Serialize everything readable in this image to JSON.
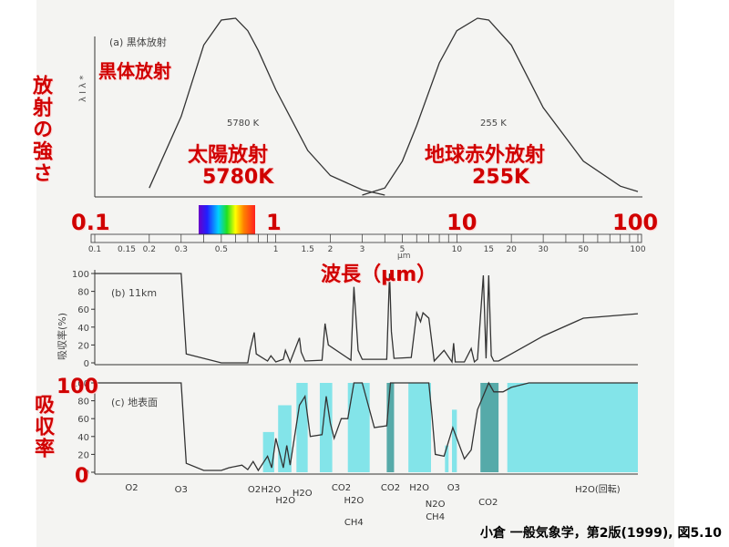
{
  "overlay": {
    "blackbody_title": "黒体放射",
    "y_title_top": "放射の強さ",
    "sun_label": "太陽放射",
    "sun_temp": "5780K",
    "earth_label": "地球赤外放射",
    "earth_temp": "255K",
    "decade_labels": [
      "0.1",
      "1",
      "10",
      "100"
    ],
    "wavelength_title": "波長（µm）",
    "y_title_bottom": "吸収率",
    "pct_100": "100",
    "pct_0": "0",
    "credit": "小倉 一般気象学，第2版(1999), 図5.10"
  },
  "chart_data": [
    {
      "type": "line",
      "panel_label": "(a) 黒体放射",
      "y_axis_label": "λ I λ *",
      "xscale": "log",
      "xlim": [
        0.1,
        100
      ],
      "series": [
        {
          "name": "5780 K",
          "x": [
            0.2,
            0.3,
            0.4,
            0.5,
            0.6,
            0.7,
            0.8,
            1.0,
            1.5,
            2,
            3,
            4
          ],
          "y": [
            0.05,
            0.45,
            0.85,
            0.99,
            1.0,
            0.93,
            0.82,
            0.6,
            0.26,
            0.12,
            0.04,
            0.01
          ]
        },
        {
          "name": "255 K",
          "x": [
            3,
            4,
            5,
            6,
            8,
            10,
            13,
            15,
            20,
            30,
            50,
            80,
            100
          ],
          "y": [
            0.01,
            0.05,
            0.2,
            0.4,
            0.75,
            0.93,
            1.0,
            0.99,
            0.85,
            0.5,
            0.2,
            0.06,
            0.03
          ]
        }
      ],
      "annotations": [
        "5780 K",
        "255 K"
      ]
    },
    {
      "type": "axis",
      "xscale": "log",
      "tick_labels": [
        "0.1",
        "0.15",
        "0.2",
        "0.3",
        "0.5",
        "1",
        "1.5",
        "2",
        "3",
        "5",
        "10",
        "15",
        "20",
        "30",
        "50",
        "100"
      ],
      "unit": "µm"
    },
    {
      "type": "line",
      "panel_label": "(b) 11km",
      "ylabel": "吸収率(%)",
      "xscale": "log",
      "ylim": [
        0,
        100
      ],
      "yticks": [
        0,
        20,
        40,
        60,
        80,
        100
      ],
      "x": [
        0.1,
        0.26,
        0.3,
        0.32,
        0.5,
        0.7,
        0.72,
        0.76,
        0.78,
        0.9,
        0.94,
        1.0,
        1.1,
        1.13,
        1.2,
        1.35,
        1.38,
        1.45,
        1.8,
        1.87,
        1.95,
        2.6,
        2.7,
        2.85,
        3.0,
        4.1,
        4.25,
        4.35,
        4.5,
        5.6,
        6.0,
        6.3,
        6.5,
        7.0,
        7.5,
        8.5,
        9.4,
        9.6,
        9.8,
        11,
        12,
        12.5,
        13,
        14,
        14.5,
        15,
        15.5,
        16,
        17,
        20,
        30,
        50,
        100
      ],
      "y": [
        100,
        100,
        100,
        10,
        0,
        0,
        14,
        34,
        10,
        2,
        8,
        1,
        4,
        14,
        1,
        28,
        12,
        2,
        3,
        44,
        20,
        3,
        85,
        14,
        4,
        4,
        100,
        35,
        5,
        6,
        56,
        46,
        56,
        50,
        2,
        14,
        1,
        22,
        1,
        1,
        16,
        1,
        4,
        98,
        5,
        98,
        8,
        2,
        2,
        10,
        30,
        50,
        55
      ]
    },
    {
      "type": "line",
      "panel_label": "(c) 地表面",
      "xscale": "log",
      "ylim": [
        0,
        100
      ],
      "yticks": [
        0,
        20,
        40,
        60,
        80,
        100
      ],
      "x": [
        0.1,
        0.26,
        0.3,
        0.32,
        0.4,
        0.5,
        0.55,
        0.65,
        0.7,
        0.75,
        0.8,
        0.9,
        0.95,
        1.0,
        1.1,
        1.15,
        1.2,
        1.35,
        1.45,
        1.55,
        1.8,
        1.9,
        2.0,
        2.1,
        2.3,
        2.5,
        2.7,
        3.0,
        3.5,
        4.1,
        4.3,
        4.6,
        5.0,
        5.5,
        6.0,
        6.5,
        7.0,
        7.3,
        7.6,
        8.5,
        9.5,
        11,
        12,
        13,
        15,
        16,
        18,
        20,
        25,
        30,
        50,
        100
      ],
      "y": [
        100,
        100,
        100,
        10,
        2,
        2,
        5,
        8,
        3,
        12,
        2,
        18,
        5,
        38,
        5,
        30,
        8,
        75,
        85,
        40,
        42,
        85,
        55,
        38,
        60,
        60,
        100,
        100,
        50,
        52,
        100,
        100,
        100,
        100,
        100,
        100,
        100,
        62,
        20,
        18,
        50,
        15,
        25,
        70,
        100,
        90,
        90,
        95,
        100,
        100,
        100,
        100
      ],
      "bands": [
        {
          "xmin": 0.85,
          "xmax": 0.98,
          "ymax": 45,
          "gas": "H2O"
        },
        {
          "xmin": 1.03,
          "xmax": 1.22,
          "ymax": 75,
          "gas": "H2O"
        },
        {
          "xmin": 1.3,
          "xmax": 1.5,
          "ymax": 100,
          "gas": "H2O"
        },
        {
          "xmin": 1.75,
          "xmax": 2.05,
          "ymax": 100,
          "gas": "H2O"
        },
        {
          "xmin": 2.5,
          "xmax": 3.3,
          "ymax": 100,
          "gas": "H2O, CO2"
        },
        {
          "xmin": 4.1,
          "xmax": 4.5,
          "ymax": 100,
          "gas": "CO2"
        },
        {
          "xmin": 5.4,
          "xmax": 7.2,
          "ymax": 100,
          "gas": "H2O"
        },
        {
          "xmin": 8.6,
          "xmax": 9.0,
          "ymax": 30,
          "gas": "N2O, CH4"
        },
        {
          "xmin": 9.4,
          "xmax": 10.0,
          "ymax": 70,
          "gas": "O3"
        },
        {
          "xmin": 13.5,
          "xmax": 17.0,
          "ymax": 100,
          "gas": "CO2"
        },
        {
          "xmin": 19.0,
          "xmax": 100,
          "ymax": 100,
          "gas": "H2O"
        }
      ],
      "absorbers": [
        "O2",
        "O3",
        "O2",
        "H2O",
        "H2O",
        "H2O",
        "CO2",
        "H2O",
        "CH4",
        "CO2",
        "H2O",
        "N2O",
        "CH4",
        "O3",
        "CO2",
        "H2O(回転)"
      ]
    }
  ],
  "colors": {
    "paper": "#f4f4f2",
    "ink": "#333333",
    "band_fill": "#6ee0e8",
    "band_overlap": "#3a9c9c",
    "label_red": "#d00000"
  }
}
